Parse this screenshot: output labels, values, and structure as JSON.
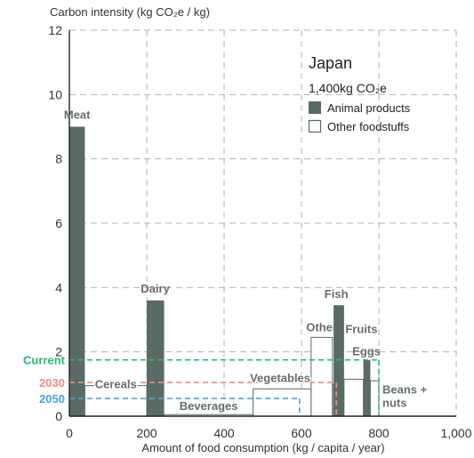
{
  "chart_data": {
    "type": "bar",
    "variant": "variable-width (Marimekko)",
    "title": "Japan",
    "subtitle": "1,400kg CO₂e",
    "ylabel": "Carbon intensity (kg CO₂e / kg)",
    "xlabel": "Amount of food consumption (kg / capita / year)",
    "xlim": [
      0,
      1000
    ],
    "ylim": [
      0,
      12
    ],
    "x_ticks": [
      0,
      200,
      400,
      600,
      800,
      1000
    ],
    "x_tick_labels": [
      "0",
      "200",
      "400",
      "600",
      "800",
      "1,000"
    ],
    "y_ticks": [
      0,
      2,
      4,
      6,
      8,
      10,
      12
    ],
    "y_tick_labels": [
      "0",
      "2",
      "4",
      "6",
      "8",
      "10",
      "12"
    ],
    "grid": true,
    "legend": {
      "placement": "top-right",
      "entries": [
        {
          "name": "Animal products",
          "type": "animal"
        },
        {
          "name": "Other foodstuffs",
          "type": "other"
        }
      ]
    },
    "categories": [
      {
        "name": "Meat",
        "type": "animal",
        "x_start": 0,
        "x_end": 40,
        "y": 9.0,
        "labeled": true
      },
      {
        "name": "Cereals",
        "type": "other",
        "x_start": 40,
        "x_end": 200,
        "y": 0.95,
        "labeled": true
      },
      {
        "name": "Dairy",
        "type": "animal",
        "x_start": 200,
        "x_end": 245,
        "y": 3.6,
        "labeled": true
      },
      {
        "name": "Beverages",
        "type": "other",
        "x_start": 245,
        "x_end": 475,
        "y": 0.05,
        "labeled": true
      },
      {
        "name": "Vegetables",
        "type": "other",
        "x_start": 475,
        "x_end": 625,
        "y": 0.85,
        "labeled": true
      },
      {
        "name": "Other",
        "type": "other",
        "x_start": 625,
        "x_end": 680,
        "y": 2.45,
        "labeled": true
      },
      {
        "name": "",
        "type": "other",
        "x_start": 680,
        "x_end": 683,
        "y": 1.0,
        "labeled": false
      },
      {
        "name": "Fish",
        "type": "animal",
        "x_start": 683,
        "x_end": 710,
        "y": 3.45,
        "labeled": true
      },
      {
        "name": "Fruits",
        "type": "other",
        "x_start": 710,
        "x_end": 760,
        "y": 1.15,
        "labeled": true
      },
      {
        "name": "Eggs",
        "type": "animal",
        "x_start": 760,
        "x_end": 778,
        "y": 1.75,
        "labeled": true
      },
      {
        "name": "Beans + nuts",
        "type": "other",
        "x_start": 778,
        "x_end": 800,
        "y": 1.1,
        "labeled": true
      }
    ],
    "reference_lines": [
      {
        "label": "Current",
        "y": 1.75,
        "x_end": 800,
        "color": "#2bb673"
      },
      {
        "label": "2030",
        "y": 1.05,
        "x_end": 690,
        "color": "#f08a8a"
      },
      {
        "label": "2050",
        "y": 0.55,
        "x_end": 595,
        "color": "#4aa3df"
      }
    ],
    "colors": {
      "animal": "#5a6b63",
      "other_fill": "#ffffff",
      "other_stroke": "#5a6b63",
      "grid": "#b3b3b3",
      "axis": "#222222"
    }
  }
}
